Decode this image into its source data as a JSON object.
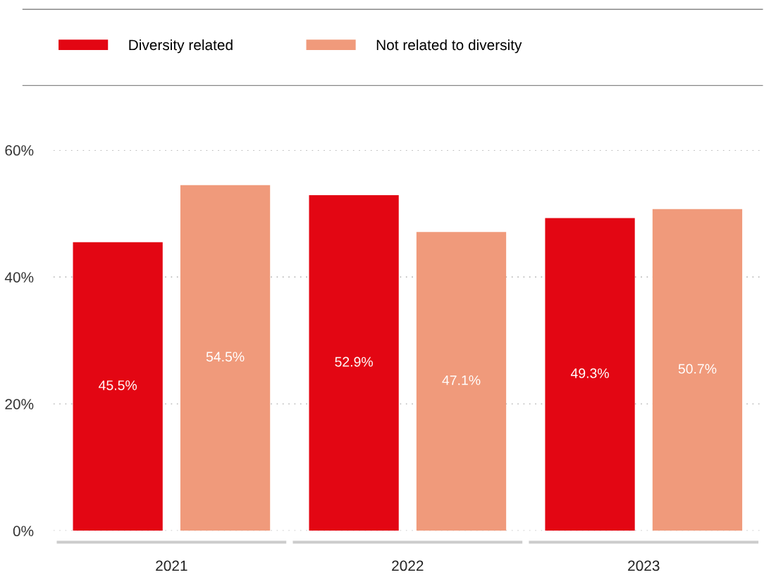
{
  "chart_data": {
    "type": "bar",
    "categories": [
      "2021",
      "2022",
      "2023"
    ],
    "series": [
      {
        "name": "Diversity related",
        "color": "#e30613",
        "values": [
          45.5,
          52.9,
          49.3
        ],
        "value_labels": [
          "45.5%",
          "52.9%",
          "49.3%"
        ]
      },
      {
        "name": "Not related to diversity",
        "color": "#f09a7b",
        "values": [
          54.5,
          47.1,
          50.7
        ],
        "value_labels": [
          "54.5%",
          "47.1%",
          "50.7%"
        ]
      }
    ],
    "ylim": [
      0,
      60
    ],
    "yticks": [
      {
        "value": 0,
        "label": "0%"
      },
      {
        "value": 20,
        "label": "20%"
      },
      {
        "value": 40,
        "label": "40%"
      },
      {
        "value": 60,
        "label": "60%"
      }
    ],
    "grid": "y",
    "legend": "top left"
  }
}
